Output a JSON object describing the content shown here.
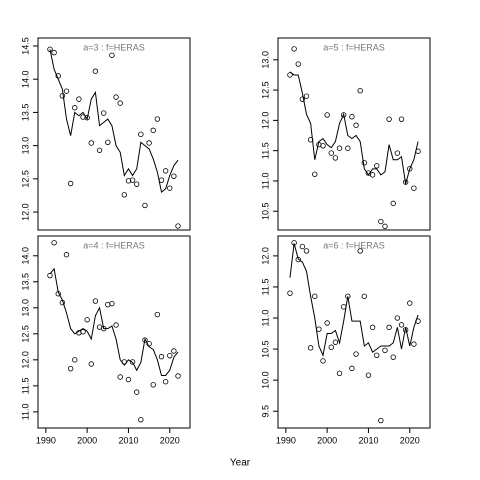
{
  "chart_data": {
    "type": "multi-panel",
    "xlabel": "Year",
    "x": [
      1991,
      1992,
      1993,
      1994,
      1995,
      1996,
      1997,
      1998,
      1999,
      2000,
      2001,
      2002,
      2003,
      2004,
      2005,
      2006,
      2007,
      2008,
      2009,
      2010,
      2011,
      2012,
      2013,
      2014,
      2015,
      2016,
      2017,
      2018,
      2019,
      2020,
      2021,
      2022
    ],
    "xlim": [
      1988.1,
      2024.9
    ],
    "xticks": [
      1990,
      2000,
      2010,
      2020
    ],
    "panels": [
      {
        "title": "a=3 : f=HERAS",
        "ylim": [
          11.73,
          14.62
        ],
        "yticks": [
          {
            "value": 12,
            "label": "12.0"
          },
          12.5,
          {
            "value": 13,
            "label": "13.0"
          },
          13.5,
          {
            "value": 14,
            "label": "14.0"
          },
          14.5
        ],
        "series": [
          {
            "type": "line",
            "color": "#000000",
            "values": [
              14.45,
              14.15,
              14.0,
              13.85,
              13.4,
              13.15,
              13.5,
              13.45,
              13.5,
              13.4,
              13.7,
              13.8,
              13.3,
              13.35,
              13.4,
              13.3,
              13.0,
              12.9,
              12.55,
              12.65,
              12.55,
              12.65,
              13.05,
              13.0,
              12.95,
              12.8,
              12.6,
              12.3,
              12.35,
              12.55,
              12.7,
              12.78
            ]
          },
          {
            "type": "scatter",
            "color": "#000000",
            "values": [
              14.45,
              14.4,
              14.05,
              13.75,
              13.82,
              12.43,
              13.57,
              13.7,
              13.43,
              13.42,
              13.04,
              14.12,
              12.93,
              13.49,
              13.05,
              14.36,
              13.73,
              13.64,
              12.26,
              12.47,
              12.48,
              12.42,
              13.17,
              12.1,
              13.04,
              13.23,
              13.4,
              12.48,
              12.62,
              12.36,
              12.54,
              11.79
            ]
          }
        ]
      },
      {
        "title": "a=5 : f=HERAS",
        "ylim": [
          10.19,
          13.36
        ],
        "yticks": [
          10.5,
          {
            "value": 11,
            "label": "11.0"
          },
          11.5,
          {
            "value": 12,
            "label": "12.0"
          },
          12.5,
          {
            "value": 13,
            "label": "13.0"
          }
        ],
        "series": [
          {
            "type": "line",
            "color": "#000000",
            "values": [
              12.8,
              12.75,
              12.75,
              12.45,
              12.1,
              11.95,
              11.35,
              11.65,
              11.7,
              11.6,
              11.55,
              11.65,
              11.95,
              12.1,
              11.75,
              11.7,
              11.75,
              11.65,
              11.2,
              11.1,
              11.2,
              11.2,
              11.1,
              11.15,
              11.6,
              11.35,
              11.35,
              11.4,
              10.95,
              11.2,
              11.35,
              11.65
            ]
          },
          {
            "type": "scatter",
            "color": "#000000",
            "values": [
              12.75,
              13.18,
              12.93,
              12.35,
              12.4,
              11.68,
              11.11,
              11.6,
              11.58,
              12.09,
              11.46,
              11.38,
              11.54,
              12.09,
              11.54,
              12.06,
              11.92,
              12.49,
              11.3,
              11.13,
              11.1,
              11.25,
              10.33,
              10.25,
              12.02,
              10.63,
              11.46,
              12.02,
              10.98,
              11.2,
              10.88,
              11.49
            ]
          }
        ]
      },
      {
        "title": "a=4 : f=HERAS",
        "ylim": [
          10.69,
          14.38
        ],
        "yticks": [
          {
            "value": 11,
            "label": "11.0"
          },
          11.5,
          {
            "value": 12,
            "label": "12.0"
          },
          12.5,
          {
            "value": 13,
            "label": "13.0"
          },
          13.5,
          {
            "value": 14,
            "label": "14.0"
          }
        ],
        "series": [
          {
            "type": "line",
            "color": "#000000",
            "values": [
              13.65,
              13.75,
              13.3,
              13.15,
              12.9,
              12.6,
              12.5,
              12.55,
              12.6,
              12.55,
              12.4,
              12.85,
              13.0,
              12.6,
              12.6,
              12.65,
              12.4,
              12.0,
              11.9,
              12.0,
              11.95,
              11.8,
              11.95,
              12.4,
              12.25,
              12.2,
              12.0,
              11.7,
              11.7,
              11.8,
              12.05,
              12.15
            ]
          },
          {
            "type": "scatter",
            "color": "#000000",
            "values": [
              13.62,
              14.25,
              13.27,
              13.1,
              14.02,
              11.83,
              12.0,
              12.52,
              12.54,
              12.77,
              11.92,
              13.13,
              12.63,
              12.6,
              13.06,
              13.08,
              12.67,
              11.67,
              11.96,
              11.62,
              11.96,
              11.38,
              10.85,
              12.38,
              12.31,
              11.52,
              12.87,
              12.06,
              11.58,
              12.08,
              12.17,
              11.69
            ]
          }
        ]
      },
      {
        "title": "a=6 : f=HERAS",
        "ylim": [
          9.23,
          12.32
        ],
        "yticks": [
          9.5,
          {
            "value": 10,
            "label": "10.0"
          },
          10.5,
          {
            "value": 11,
            "label": "11.0"
          },
          11.5,
          {
            "value": 12,
            "label": "12.0"
          }
        ],
        "series": [
          {
            "type": "line",
            "color": "#000000",
            "values": [
              11.65,
              12.2,
              11.95,
              11.9,
              11.75,
              11.35,
              11.0,
              10.55,
              10.4,
              10.75,
              10.75,
              10.8,
              10.6,
              10.95,
              11.35,
              10.95,
              10.95,
              10.95,
              10.55,
              10.6,
              10.45,
              10.5,
              10.55,
              10.55,
              10.55,
              10.6,
              10.85,
              10.5,
              10.85,
              10.55,
              10.85,
              11.05
            ]
          },
          {
            "type": "scatter",
            "color": "#000000",
            "values": [
              11.4,
              12.21,
              11.94,
              12.15,
              12.08,
              10.52,
              11.35,
              10.82,
              10.31,
              10.92,
              10.53,
              10.61,
              10.11,
              11.18,
              11.35,
              10.19,
              10.42,
              12.08,
              11.35,
              10.08,
              10.85,
              10.4,
              9.35,
              10.48,
              10.85,
              10.37,
              11.0,
              10.89,
              10.81,
              11.24,
              10.58,
              10.95
            ]
          }
        ]
      }
    ]
  }
}
